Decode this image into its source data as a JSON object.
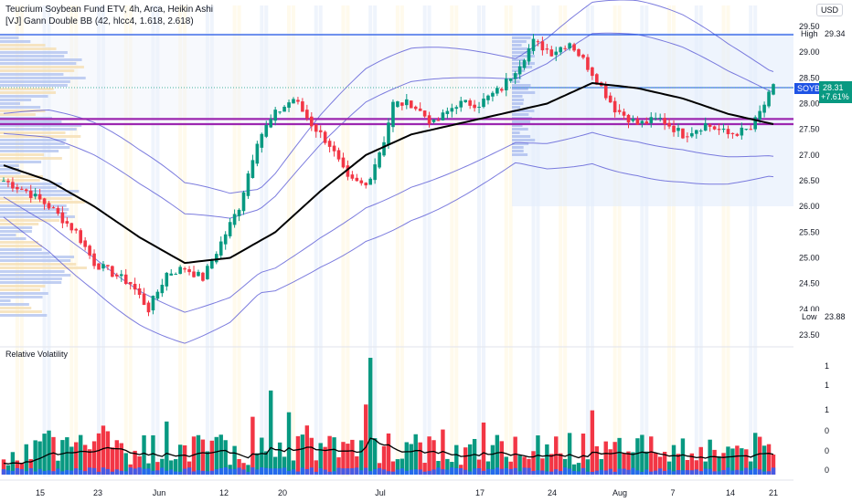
{
  "header": {
    "title": "Teucrium Soybean Fund ETV, 4h, Arca, Heikin Ashi",
    "indicator": "[VJ] Gann Double BB (42, hlcc4, 1.618, 2.618)",
    "currency": "USD"
  },
  "price_axis": {
    "ticks": [
      "29.50",
      "29.00",
      "28.50",
      "28.00",
      "27.50",
      "27.00",
      "26.50",
      "26.00",
      "25.50",
      "25.00",
      "24.50",
      "24.00",
      "23.50"
    ],
    "high_label": "High",
    "high_value": "29.34",
    "low_label": "Low",
    "low_value": "23.88",
    "symbol": "SOYB",
    "last_price": "28.31",
    "change": "+7.61%"
  },
  "lower_pane": {
    "title": "Relative Volatility",
    "ticks": [
      "1",
      "1",
      "1",
      "0",
      "0",
      "0"
    ]
  },
  "time_axis": {
    "labels": [
      "15",
      "23",
      "Jun",
      "12",
      "20",
      "Jul",
      "17",
      "24",
      "Aug",
      "7",
      "14",
      "21"
    ]
  },
  "colors": {
    "up": "#089981",
    "down": "#f23645",
    "ma": "#000000",
    "bands": "#5b5bd6",
    "high_line": "#1e53e5",
    "magenta": "#9c27b0",
    "vp_left": "#b2c3ef",
    "vp_left_alt": "#f5deb3"
  },
  "chart_data": {
    "type": "candlestick",
    "title": "Teucrium Soybean Fund ETV, 4h, Arca, Heikin Ashi",
    "ylim": [
      23.5,
      29.5
    ],
    "x_ticks": [
      "15",
      "23",
      "Jun",
      "12",
      "20",
      "Jul",
      "17",
      "24",
      "Aug",
      "7",
      "14",
      "21"
    ],
    "anchors": {
      "x": [
        0,
        5,
        10,
        16,
        20,
        24,
        28,
        32,
        36,
        40,
        44,
        48,
        52,
        56,
        60,
        64,
        68,
        72,
        76,
        80,
        84,
        86,
        90,
        95,
        100,
        105,
        110,
        114,
        117,
        121,
        125,
        130,
        135,
        140,
        145,
        150,
        155,
        160,
        165,
        170
      ],
      "close": [
        26.5,
        26.3,
        26.0,
        25.5,
        24.9,
        24.7,
        24.5,
        24.0,
        24.7,
        24.8,
        24.6,
        25.3,
        26.0,
        27.3,
        27.8,
        28.1,
        27.6,
        27.2,
        26.5,
        26.4,
        27.3,
        28.0,
        28.0,
        27.6,
        28.0,
        28.0,
        28.3,
        28.8,
        29.2,
        29.0,
        29.2,
        28.6,
        27.9,
        27.6,
        27.7,
        27.4,
        27.6,
        27.4,
        27.5,
        28.31
      ]
    },
    "moving_average": {
      "x": [
        0,
        10,
        20,
        30,
        40,
        50,
        60,
        70,
        80,
        90,
        100,
        110,
        120,
        130,
        140,
        150,
        160,
        170
      ],
      "y": [
        26.8,
        26.5,
        26.0,
        25.4,
        24.9,
        25.0,
        25.5,
        26.3,
        27.0,
        27.4,
        27.6,
        27.8,
        28.0,
        28.4,
        28.3,
        28.1,
        27.8,
        27.6
      ]
    },
    "levels": {
      "high": 29.34,
      "low": 23.88,
      "last": 28.31,
      "horizontal": [
        27.7,
        27.6
      ]
    },
    "relative_volatility": {
      "type": "bar",
      "highlights": [
        {
          "x": 59,
          "value": 0.72,
          "direction": "up"
        },
        {
          "x": 80,
          "value": 0.6,
          "direction": "down"
        },
        {
          "x": 81,
          "value": 1.0,
          "direction": "up"
        },
        {
          "x": 130,
          "value": 0.55,
          "direction": "down"
        }
      ]
    }
  }
}
